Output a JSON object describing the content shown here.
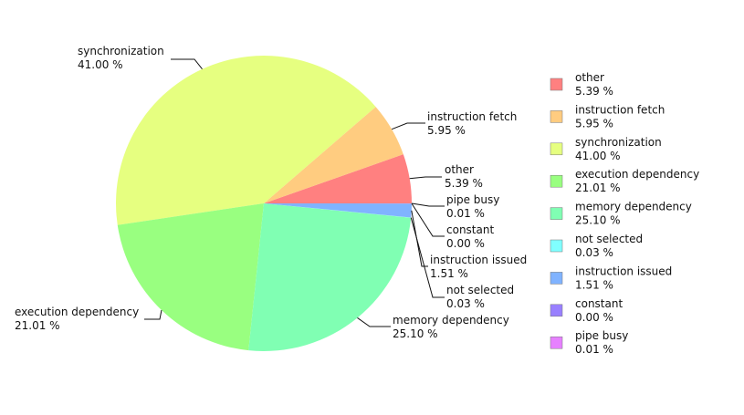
{
  "chart_data": {
    "type": "pie",
    "categories": [
      "other",
      "instruction fetch",
      "synchronization",
      "execution dependency",
      "memory dependency",
      "not selected",
      "instruction issued",
      "constant",
      "pipe busy"
    ],
    "values": [
      5.39,
      5.95,
      41.0,
      21.01,
      25.1,
      0.03,
      1.51,
      0.0,
      0.01
    ],
    "value_labels": [
      "5.39 %",
      "5.95 %",
      "41.00 %",
      "21.01 %",
      "25.10 %",
      "0.03 %",
      "1.51 %",
      "0.00 %",
      "0.01 %"
    ],
    "colors": [
      "#ff8080",
      "#ffcc80",
      "#e6ff80",
      "#99ff80",
      "#80ffb3",
      "#80ffff",
      "#80b3ff",
      "#9980ff",
      "#e680ff"
    ],
    "legend": "right"
  }
}
